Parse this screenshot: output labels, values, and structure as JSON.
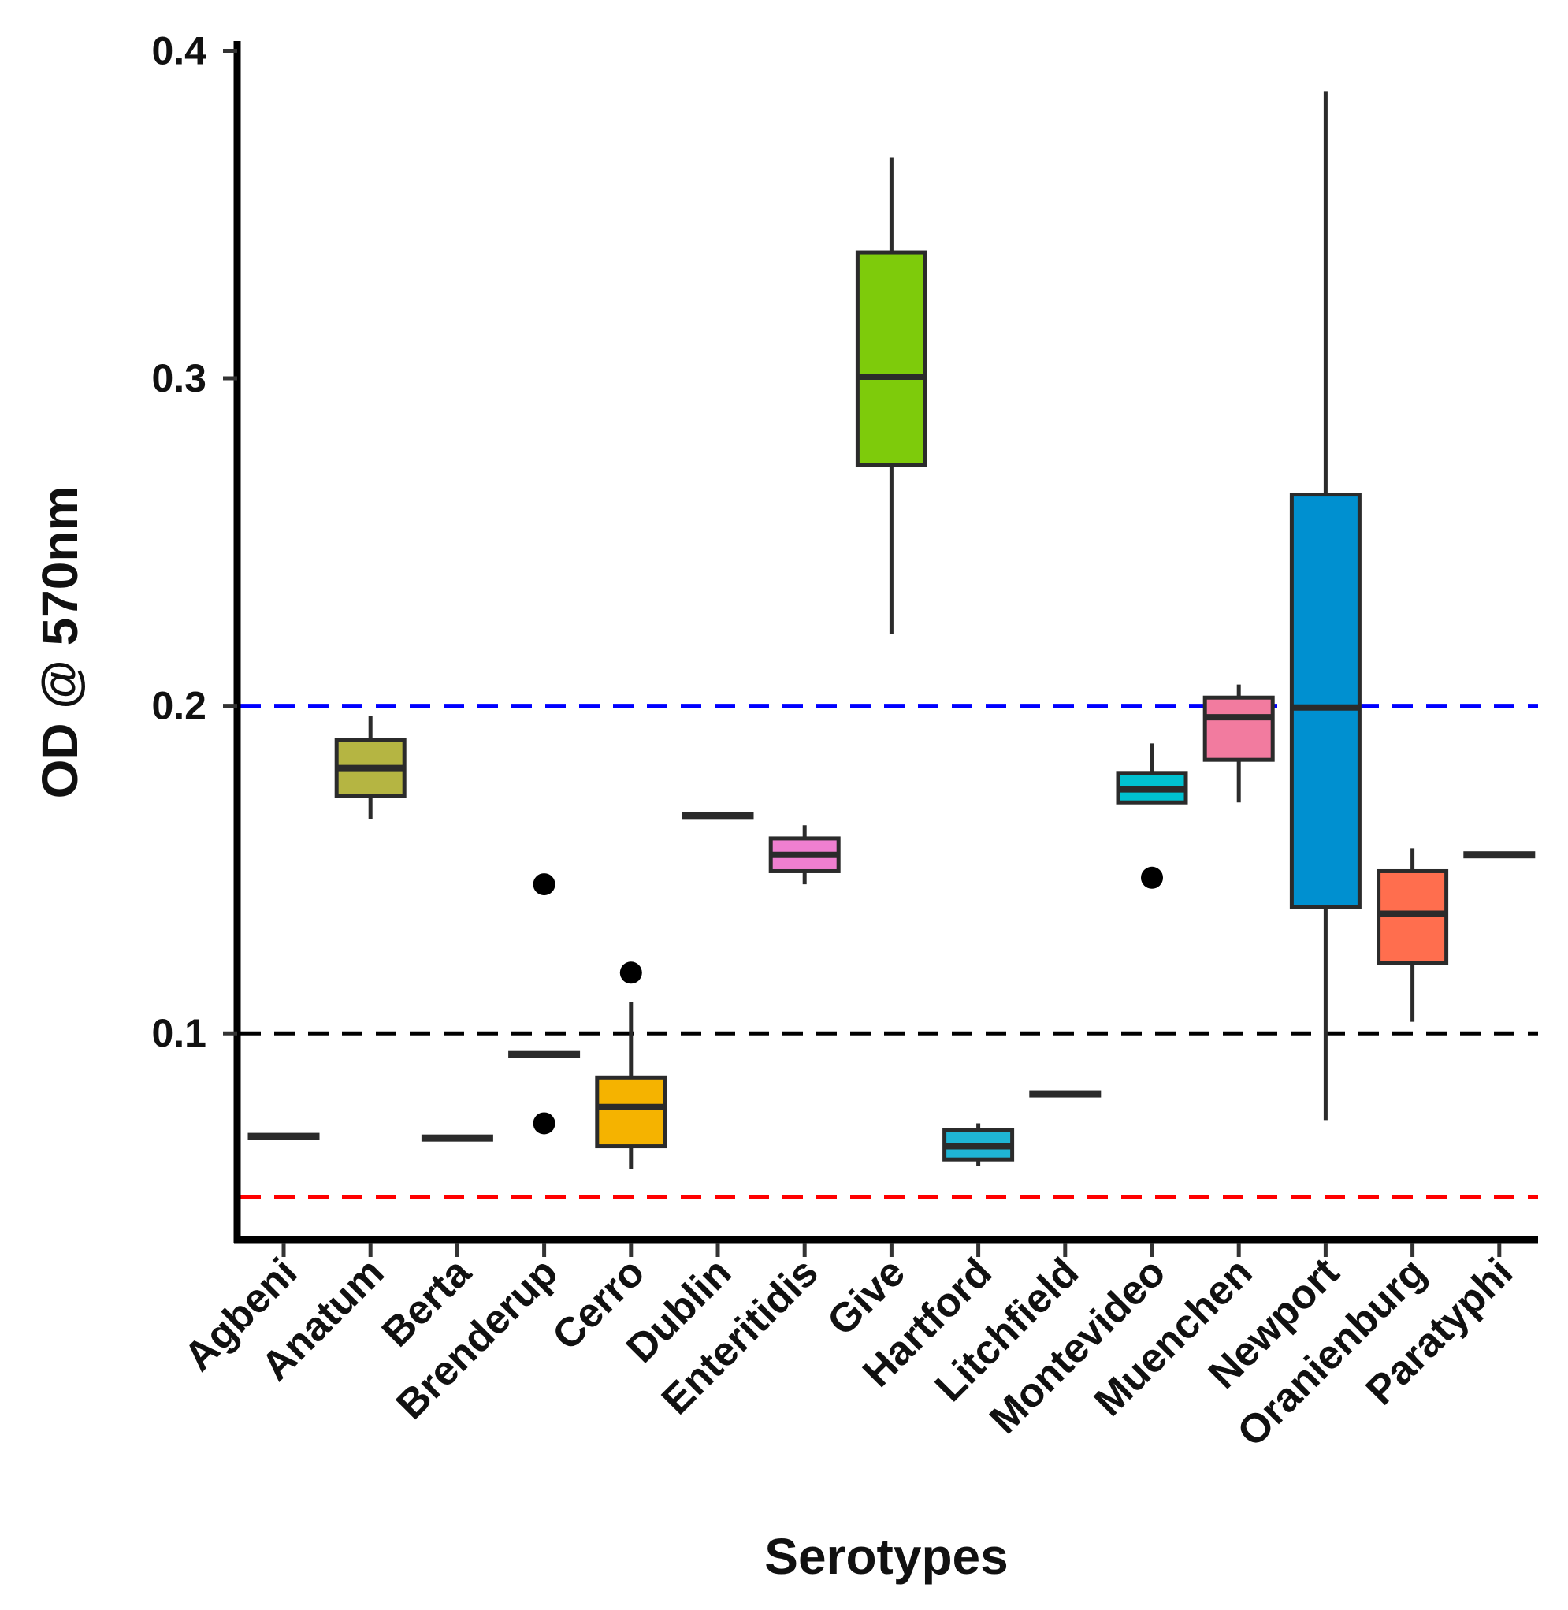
{
  "chart_data": {
    "type": "boxplot",
    "xlabel": "Serotypes",
    "ylabel": "OD @ 570nm",
    "ylim": [
      0.037,
      0.403
    ],
    "yticks": [
      "0.1",
      "0.2",
      "0.3",
      "0.4"
    ],
    "ytick_values": [
      0.1,
      0.2,
      0.3,
      0.4
    ],
    "reference_lines": [
      {
        "name": "upper-threshold",
        "value": 0.2,
        "color": "#0000ff",
        "style": "dashed"
      },
      {
        "name": "middle-threshold",
        "value": 0.1,
        "color": "#000000",
        "style": "dashed"
      },
      {
        "name": "lower-threshold",
        "value": 0.05,
        "color": "#ff0000",
        "style": "dashed"
      }
    ],
    "categories": [
      "Agbeni",
      "Anatum",
      "Berta",
      "Brenderup",
      "Cerro",
      "Dublin",
      "Enteritidis",
      "Give",
      "Hartford",
      "Litchfield",
      "Montevideo",
      "Muenchen",
      "Newport",
      "Oranienburg",
      "Paratyphi"
    ],
    "boxes": [
      {
        "category": "Agbeni",
        "color": "#f8766d",
        "whisker_low": 0.0685,
        "q1": 0.0685,
        "median": 0.0685,
        "q3": 0.0685,
        "whisker_high": 0.0685,
        "outliers": []
      },
      {
        "category": "Anatum",
        "color": "#b5b542",
        "whisker_low": 0.1655,
        "q1": 0.1725,
        "median": 0.181,
        "q3": 0.1895,
        "whisker_high": 0.197,
        "outliers": []
      },
      {
        "category": "Berta",
        "color": "#8fb82e",
        "whisker_low": 0.068,
        "q1": 0.068,
        "median": 0.068,
        "q3": 0.068,
        "whisker_high": 0.068,
        "outliers": []
      },
      {
        "category": "Brenderup",
        "color": "#7cae00",
        "whisker_low": 0.0935,
        "q1": 0.0935,
        "median": 0.0935,
        "q3": 0.0935,
        "whisker_high": 0.0935,
        "outliers": [
          0.1455,
          0.0725
        ]
      },
      {
        "category": "Cerro",
        "color": "#f5b300",
        "whisker_low": 0.0585,
        "q1": 0.0655,
        "median": 0.0775,
        "q3": 0.0865,
        "whisker_high": 0.1095,
        "outliers": [
          0.1185
        ]
      },
      {
        "category": "Dublin",
        "color": "#00be67",
        "whisker_low": 0.1665,
        "q1": 0.1665,
        "median": 0.1665,
        "q3": 0.1665,
        "whisker_high": 0.1665,
        "outliers": []
      },
      {
        "category": "Enteritidis",
        "color": "#ef7fd0",
        "whisker_low": 0.1455,
        "q1": 0.1495,
        "median": 0.1545,
        "q3": 0.1595,
        "whisker_high": 0.1635,
        "outliers": []
      },
      {
        "category": "Give",
        "color": "#7ecb0b",
        "whisker_low": 0.222,
        "q1": 0.2735,
        "median": 0.3005,
        "q3": 0.3385,
        "whisker_high": 0.3675,
        "outliers": []
      },
      {
        "category": "Hartford",
        "color": "#1fb5d5",
        "whisker_low": 0.0595,
        "q1": 0.0615,
        "median": 0.0655,
        "q3": 0.0705,
        "whisker_high": 0.0725,
        "outliers": []
      },
      {
        "category": "Litchfield",
        "color": "#00b8e7",
        "whisker_low": 0.0815,
        "q1": 0.0815,
        "median": 0.0815,
        "q3": 0.0815,
        "whisker_high": 0.0815,
        "outliers": []
      },
      {
        "category": "Montevideo",
        "color": "#00c1d0",
        "whisker_low": 0.1705,
        "q1": 0.1705,
        "median": 0.1745,
        "q3": 0.1795,
        "whisker_high": 0.1885,
        "outliers": [
          0.1475
        ]
      },
      {
        "category": "Muenchen",
        "color": "#f27b9f",
        "whisker_low": 0.1705,
        "q1": 0.1835,
        "median": 0.1965,
        "q3": 0.2025,
        "whisker_high": 0.2065,
        "outliers": []
      },
      {
        "category": "Newport",
        "color": "#0090d0",
        "whisker_low": 0.0735,
        "q1": 0.1385,
        "median": 0.1995,
        "q3": 0.2645,
        "whisker_high": 0.3875,
        "outliers": []
      },
      {
        "category": "Oranienburg",
        "color": "#ff6e4e",
        "whisker_low": 0.1035,
        "q1": 0.1215,
        "median": 0.1365,
        "q3": 0.1495,
        "whisker_high": 0.1565,
        "outliers": []
      },
      {
        "category": "Paratyphi",
        "color": "#e76bf3",
        "whisker_low": 0.1545,
        "q1": 0.1545,
        "median": 0.1545,
        "q3": 0.1545,
        "whisker_high": 0.1545,
        "outliers": []
      }
    ]
  }
}
